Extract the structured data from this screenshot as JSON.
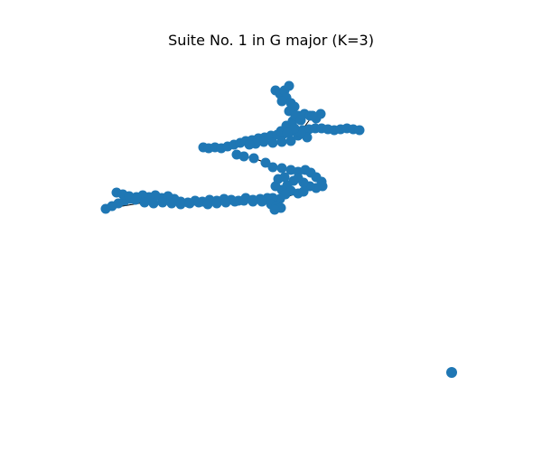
{
  "title": "Suite No. 1 in G major (K=3)",
  "colors": {
    "node": "#1f77b4",
    "edge": "#000000",
    "background": "#ffffff"
  }
}
